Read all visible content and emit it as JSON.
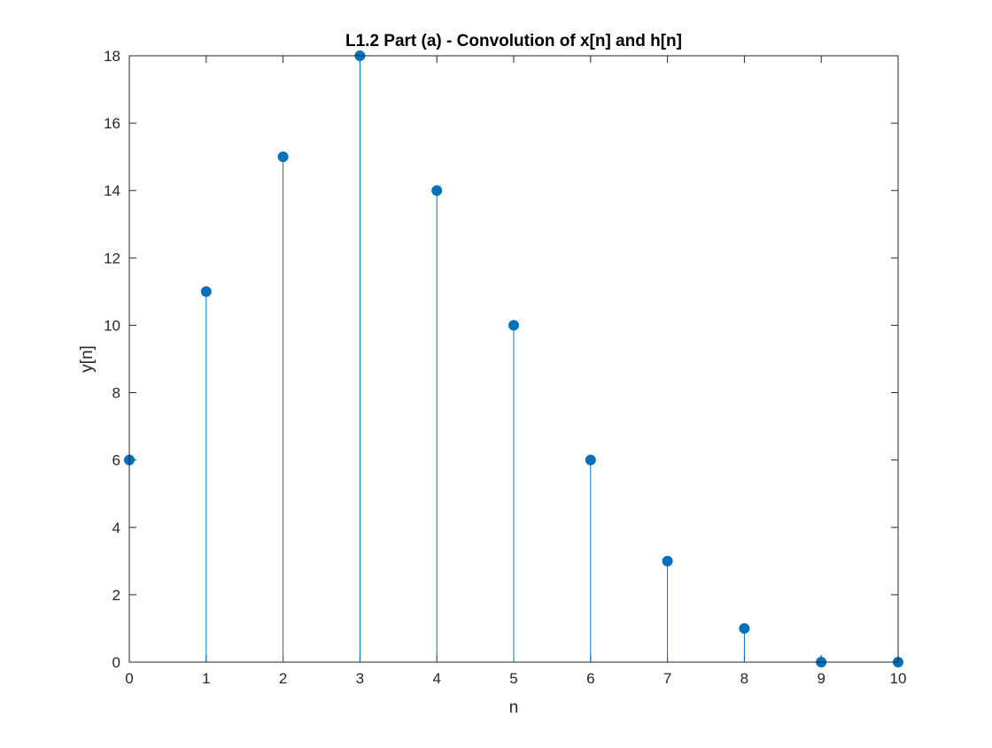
{
  "chart_data": {
    "type": "stem",
    "title": "L1.2 Part (a) - Convolution of x[n] and h[n]",
    "xlabel": "n",
    "ylabel": "y[n]",
    "x": [
      0,
      1,
      2,
      3,
      4,
      5,
      6,
      7,
      8,
      9,
      10
    ],
    "y": [
      6,
      11,
      15,
      18,
      14,
      10,
      6,
      3,
      1,
      0,
      0
    ],
    "xlim": [
      0,
      10
    ],
    "ylim": [
      0,
      18
    ],
    "xticks": [
      0,
      1,
      2,
      3,
      4,
      5,
      6,
      7,
      8,
      9,
      10
    ],
    "yticks": [
      0,
      2,
      4,
      6,
      8,
      10,
      12,
      14,
      16,
      18
    ],
    "grid": false,
    "legend": "none",
    "colors": {
      "stem": "#0072bd",
      "axes": "#262626",
      "background": "#ffffff"
    }
  }
}
